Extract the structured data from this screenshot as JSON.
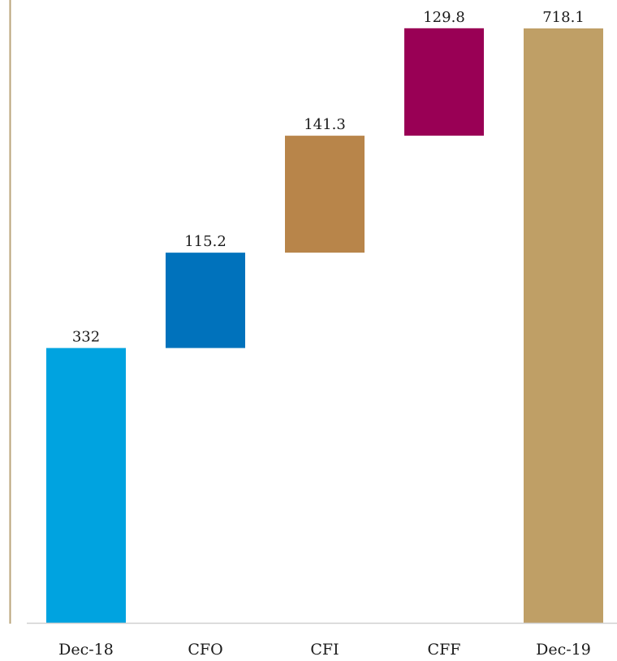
{
  "chart_data": {
    "type": "bar",
    "subtype": "waterfall",
    "categories": [
      "Dec-18",
      "CFO",
      "CFI",
      "CFF",
      "Dec-19"
    ],
    "values": [
      332,
      115.2,
      141.3,
      129.8,
      718.1
    ],
    "value_labels": [
      "332",
      "115.2",
      "141.3",
      "129.8",
      "718.1"
    ],
    "bar_kinds": [
      "total",
      "delta",
      "delta",
      "delta",
      "total"
    ],
    "colors": [
      "#00A3E0",
      "#0072BC",
      "#B8854A",
      "#990055",
      "#BF9F66"
    ],
    "axis_color": "#B9A47A",
    "ylim": [
      0,
      718.1
    ],
    "title": "",
    "xlabel": "",
    "ylabel": "",
    "grid": false,
    "legend": "none"
  }
}
